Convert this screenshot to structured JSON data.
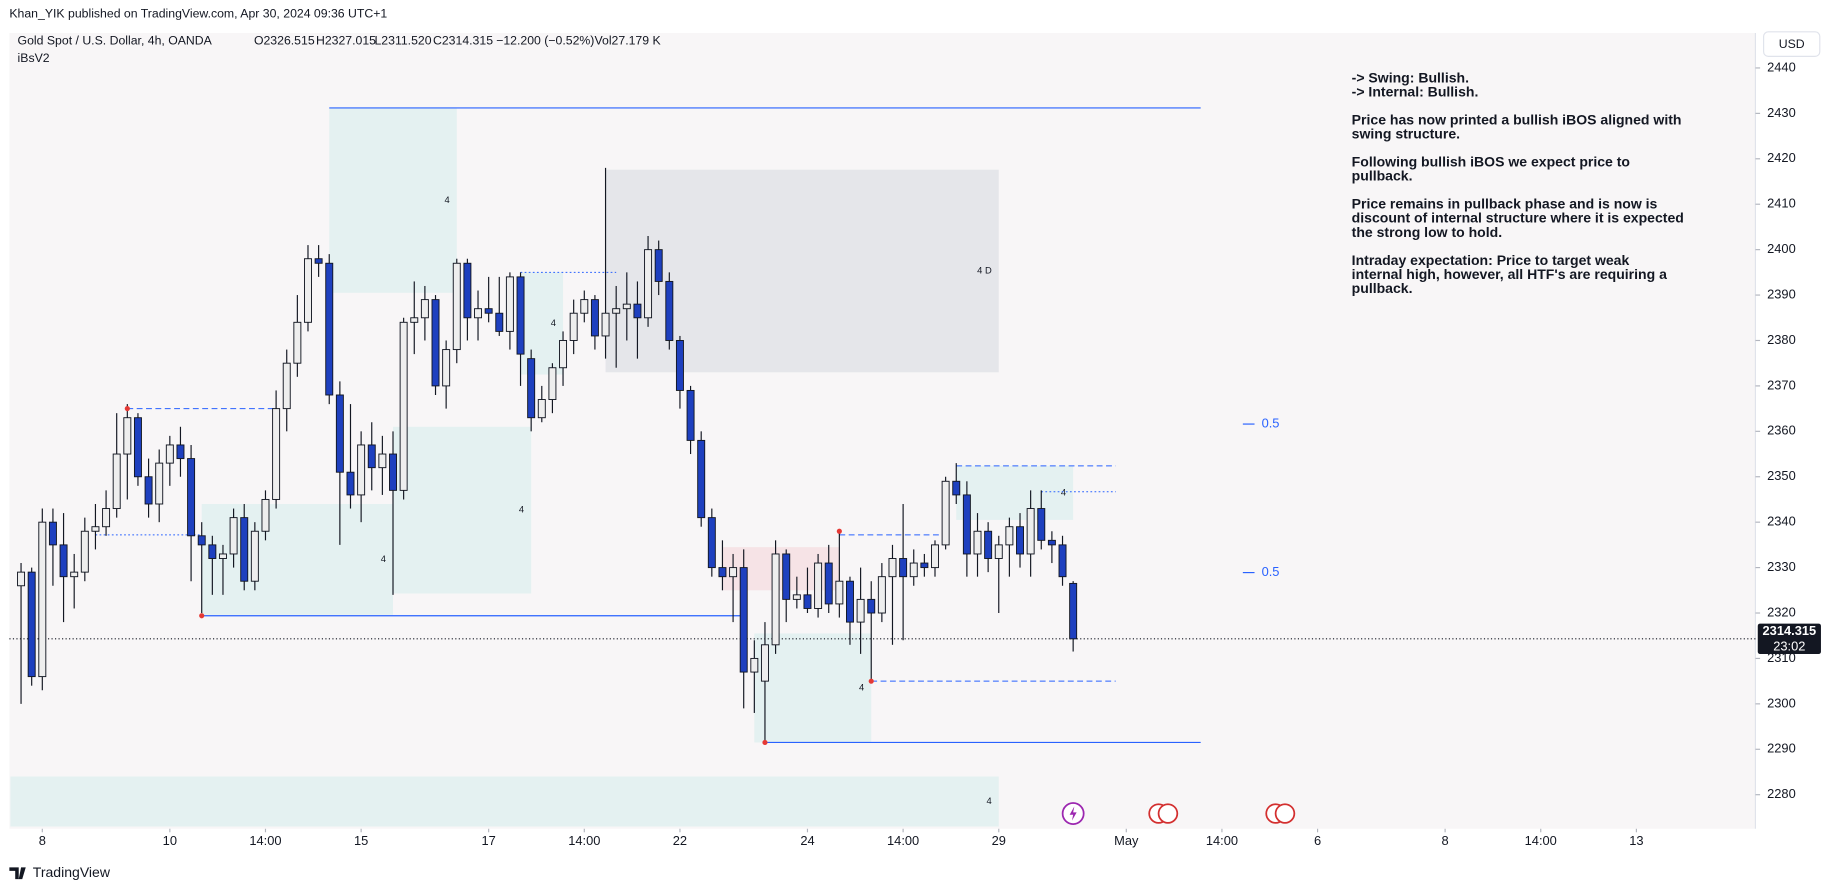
{
  "header": {
    "publisher": "Khan_YIK published on TradingView.com, Apr 30, 2024 09:36 UTC+1",
    "symbol": "Gold Spot / U.S. Dollar, 4h, OANDA",
    "open": "O2326.515",
    "high": "H2327.015",
    "low": "L2311.520",
    "close": "C2314.315",
    "change": "−12.200 (−0.52%)",
    "volume": "Vol27.179 K",
    "indicator": "iBsV2",
    "currency": "USD",
    "logo": "TradingView"
  },
  "chart_data": {
    "type": "candlestick",
    "xlim": [
      -1.1,
      163.2
    ],
    "ylim": [
      2272.5,
      2447.7
    ],
    "yticks": [
      2280,
      2290,
      2300,
      2310,
      2320,
      2330,
      2340,
      2350,
      2360,
      2370,
      2380,
      2390,
      2400,
      2410,
      2420,
      2430,
      2440
    ],
    "xticks": [
      {
        "value": 2,
        "label": "8"
      },
      {
        "value": 14,
        "label": "10"
      },
      {
        "value": 23,
        "label": "14:00"
      },
      {
        "value": 32,
        "label": "15"
      },
      {
        "value": 44,
        "label": "17"
      },
      {
        "value": 53,
        "label": "14:00"
      },
      {
        "value": 62,
        "label": "22"
      },
      {
        "value": 74,
        "label": "24"
      },
      {
        "value": 83,
        "label": "14:00"
      },
      {
        "value": 92,
        "label": "29"
      },
      {
        "value": 104,
        "label": "May"
      },
      {
        "value": 113,
        "label": "14:00"
      },
      {
        "value": 122,
        "label": "6"
      },
      {
        "value": 134,
        "label": "8"
      },
      {
        "value": 143,
        "label": "14:00"
      },
      {
        "value": 152,
        "label": "13"
      }
    ],
    "up_color": "#eeeeee",
    "down_color": "#1e40bf",
    "open": [
      2326,
      2329,
      2306,
      2340,
      2335,
      2328,
      2329,
      2338,
      2339,
      2343,
      2355,
      2363,
      2350,
      2344,
      2353,
      2357,
      2354,
      2337,
      2335,
      2332,
      2333,
      2341,
      2327,
      2338,
      2345,
      2365,
      2375,
      2384,
      2398,
      2397,
      2368,
      2351,
      2346,
      2357,
      2352,
      2355,
      2347,
      2384,
      2385,
      2389,
      2370,
      2378,
      2397,
      2385,
      2387,
      2386,
      2382,
      2394,
      2376,
      2363,
      2367,
      2374,
      2380,
      2386,
      2389,
      2381,
      2386,
      2387,
      2388,
      2385,
      2400,
      2393,
      2380,
      2369,
      2358,
      2341,
      2330,
      2328,
      2330,
      2307,
      2305,
      2313,
      2333,
      2323,
      2324,
      2321,
      2331,
      2322,
      2327,
      2318,
      2323,
      2320,
      2328,
      2332,
      2328,
      2331,
      2330,
      2335,
      2349,
      2346,
      2333,
      2338,
      2332,
      2335,
      2339,
      2333,
      2343,
      2336,
      2335,
      2326.515
    ],
    "high": [
      2331,
      2330,
      2343,
      2343,
      2342,
      2333,
      2341,
      2344,
      2347,
      2364,
      2366,
      2364,
      2354,
      2356,
      2359,
      2361,
      2357,
      2340,
      2337,
      2335,
      2343,
      2344,
      2340,
      2347,
      2369,
      2378,
      2390,
      2401,
      2401,
      2399,
      2371,
      2366,
      2360,
      2362,
      2359,
      2360,
      2385,
      2393,
      2392,
      2390,
      2380,
      2398,
      2398,
      2391,
      2394,
      2394,
      2395,
      2395,
      2378,
      2370,
      2375,
      2382,
      2389,
      2391,
      2390,
      2418,
      2392,
      2395,
      2393,
      2403,
      2402,
      2395,
      2381,
      2370,
      2360,
      2343,
      2336,
      2333,
      2334,
      2314,
      2318,
      2336,
      2334,
      2328,
      2330,
      2333,
      2335,
      2338,
      2328,
      2330,
      2327,
      2331,
      2335,
      2344,
      2334,
      2333,
      2336,
      2350,
      2353,
      2349,
      2342,
      2340,
      2337,
      2341,
      2342,
      2347,
      2347,
      2338,
      2337,
      2327.015
    ],
    "low": [
      2300,
      2304,
      2303,
      2326,
      2318,
      2321,
      2327,
      2334,
      2337,
      2341,
      2345,
      2348,
      2341,
      2340,
      2348,
      2350,
      2327,
      2320,
      2324,
      2324,
      2330,
      2325,
      2325,
      2336,
      2343,
      2360,
      2372,
      2382,
      2394,
      2366,
      2335,
      2343,
      2340,
      2347,
      2346,
      2324,
      2345,
      2377,
      2380,
      2368,
      2365,
      2375,
      2380,
      2380,
      2384,
      2381,
      2378,
      2370,
      2360,
      2362,
      2364,
      2370,
      2377,
      2384,
      2378,
      2376,
      2374,
      2380,
      2376,
      2383,
      2390,
      2378,
      2365,
      2355,
      2339,
      2328,
      2325,
      2318,
      2299,
      2298,
      2291.5,
      2311,
      2318,
      2321,
      2320,
      2319,
      2320,
      2319,
      2313,
      2311,
      2305,
      2318,
      2313,
      2314,
      2326,
      2328,
      2328,
      2334,
      2344,
      2328,
      2328,
      2329,
      2320,
      2328,
      2330,
      2328,
      2334,
      2331,
      2326,
      2311.52
    ],
    "close": [
      2329,
      2306,
      2340,
      2335,
      2328,
      2329,
      2338,
      2339,
      2343,
      2355,
      2363,
      2350,
      2344,
      2353,
      2357,
      2354,
      2337,
      2335,
      2332,
      2333,
      2341,
      2327,
      2338,
      2345,
      2365,
      2375,
      2384,
      2398,
      2397,
      2368,
      2351,
      2346,
      2357,
      2352,
      2355,
      2347,
      2384,
      2385,
      2389,
      2370,
      2378,
      2397,
      2385,
      2387,
      2386,
      2382,
      2394,
      2377,
      2363,
      2367,
      2374,
      2380,
      2386,
      2389,
      2381,
      2386,
      2387,
      2388,
      2385,
      2400,
      2393,
      2380,
      2369,
      2358,
      2341,
      2330,
      2328,
      2330,
      2307,
      2310,
      2313,
      2333,
      2323,
      2324,
      2321,
      2331,
      2322,
      2327,
      2318,
      2323,
      2320,
      2328,
      2332,
      2328,
      2331,
      2330,
      2335,
      2349,
      2346,
      2333,
      2338,
      2332,
      2335,
      2339,
      2333,
      2343,
      2336,
      2335,
      2328,
      2314.315
    ],
    "zones": [
      {
        "top": 2431.2,
        "bottom": 2390.5,
        "from": 29,
        "to": 41,
        "color": "#e4f1f1",
        "label": "4"
      },
      {
        "top": 2417.6,
        "bottom": 2373,
        "from": 55,
        "to": 92,
        "color": "#e5e6ea",
        "label": "4 D"
      },
      {
        "top": 2344,
        "bottom": 2319.6,
        "from": 17,
        "to": 35,
        "color": "#e4f1f1",
        "label": "4"
      },
      {
        "top": 2361,
        "bottom": 2324.3,
        "from": 35,
        "to": 48,
        "color": "#e4f1f1",
        "label": "4"
      },
      {
        "top": 2395,
        "bottom": 2372.5,
        "from": 47,
        "to": 51,
        "color": "#e4f1f1",
        "label": "4"
      },
      {
        "top": 2334.5,
        "bottom": 2325,
        "from": 66,
        "to": 77,
        "color": "#f6e3e6",
        "label": "4"
      },
      {
        "top": 2315.5,
        "bottom": 2291.5,
        "from": 69,
        "to": 80,
        "color": "#e4f1f1",
        "label": "4"
      },
      {
        "top": 2352.4,
        "bottom": 2340.5,
        "from": 88,
        "to": 99,
        "color": "#e4f1f1",
        "label": "4"
      },
      {
        "top": 2284,
        "bottom": 2273,
        "from": -1,
        "to": 92,
        "color": "#e4f1f1",
        "label": "4"
      }
    ],
    "levels": [
      {
        "value": 2431.2,
        "from": 29,
        "to": 111,
        "style": "solid"
      },
      {
        "value": 2291.5,
        "from": 70,
        "to": 111,
        "style": "solid"
      },
      {
        "value": 2319.4,
        "from": 17,
        "to": 68,
        "style": "solid"
      },
      {
        "value": 2365,
        "from": 10,
        "to": 24,
        "style": "dashed"
      },
      {
        "value": 2337.2,
        "from": 77,
        "to": 87,
        "style": "dashed"
      },
      {
        "value": 2352.4,
        "from": 88,
        "to": 103,
        "style": "dashed"
      },
      {
        "value": 2305,
        "from": 80,
        "to": 103,
        "style": "dashed"
      },
      {
        "value": 2346.7,
        "from": 96,
        "to": 103,
        "style": "dotted"
      },
      {
        "value": 2337.2,
        "from": 7,
        "to": 17,
        "style": "dotted"
      },
      {
        "value": 2395,
        "from": 47,
        "to": 56,
        "style": "dotted"
      }
    ],
    "pivots": [
      {
        "x": 10,
        "value": 2365
      },
      {
        "x": 17,
        "value": 2319.4
      },
      {
        "x": 70,
        "value": 2291.5
      },
      {
        "x": 77,
        "value": 2338
      },
      {
        "x": 80,
        "value": 2305
      }
    ],
    "midlines": [
      {
        "value": 2361.6,
        "label": "0.5"
      },
      {
        "value": 2328.9,
        "label": "0.5"
      }
    ],
    "last_price": {
      "value": 2314.315,
      "label": "2314.315",
      "countdown": "23:02"
    },
    "annotation": [
      [
        "-> Swing:  Bullish.",
        "-> Internal:  Bullish."
      ],
      [
        "Price has now printed a bullish iBOS aligned with",
        "swing structure."
      ],
      [
        "Following bullish iBOS we expect price to",
        "pullback."
      ],
      [
        "Price remains in pullback phase and is now is",
        "discount of internal structure where it is expected",
        "the strong low to hold."
      ],
      [
        "Intraday expectation: Price to target weak",
        "internal high, however, all HTF's are requiring a",
        "pullback."
      ]
    ]
  }
}
